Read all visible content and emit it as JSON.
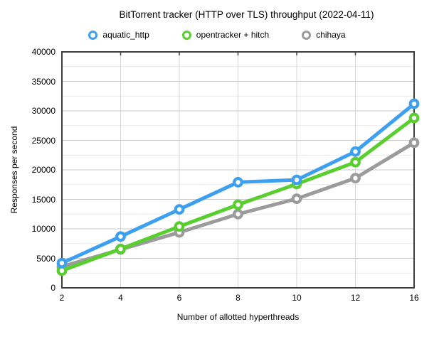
{
  "chart_data": {
    "type": "line",
    "title": "BitTorrent tracker (HTTP over TLS) throughput (2022-04-11)",
    "xlabel": "Number of allotted hyperthreads",
    "ylabel": "Responses per second",
    "categories": [
      2,
      4,
      6,
      8,
      10,
      12,
      16
    ],
    "x_tick_labels": [
      "2",
      "4",
      "6",
      "8",
      "10",
      "12",
      "16"
    ],
    "y_ticks": [
      0,
      5000,
      10000,
      15000,
      20000,
      25000,
      30000,
      35000,
      40000
    ],
    "y_tick_labels": [
      "0",
      "5000",
      "10000",
      "15000",
      "20000",
      "25000",
      "30000",
      "35000",
      "40000"
    ],
    "ylim": [
      0,
      40000
    ],
    "y_minor_step": 2500,
    "grid": "horizontal major+minor, vertical at interior categories",
    "legend_position": "top-center",
    "marker_style": "ring",
    "series": [
      {
        "name": "aquatic_http",
        "color": "#3C9FF0",
        "values": [
          4200,
          8700,
          13300,
          17900,
          18300,
          23100,
          31200
        ]
      },
      {
        "name": "opentracker + hitch",
        "color": "#58CF2F",
        "values": [
          2900,
          6600,
          10400,
          14100,
          17600,
          21300,
          28800
        ]
      },
      {
        "name": "chihaya",
        "color": "#9B9B9B",
        "values": [
          3600,
          6500,
          9400,
          12500,
          15100,
          18600,
          24600
        ]
      }
    ]
  },
  "style_colors": {
    "grid_major": "#c8c8c8",
    "grid_minor": "#eaeaea",
    "grid_vertical": "#d6d6d6",
    "axis_border": "#3d3d3d"
  }
}
